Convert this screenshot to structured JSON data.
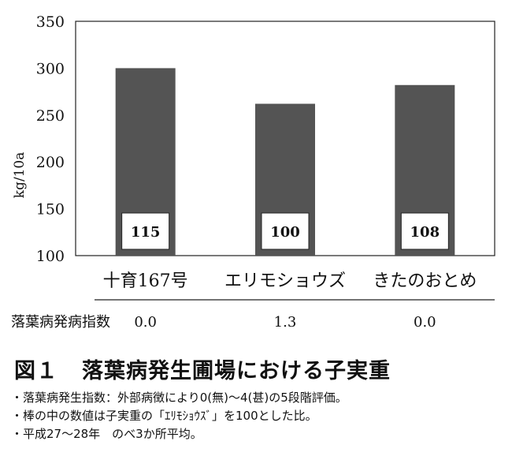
{
  "chart_data": {
    "type": "bar",
    "categories": [
      "十育167号",
      "エリモショウズ",
      "きたのおとめ"
    ],
    "values": [
      300,
      262,
      282
    ],
    "bar_labels": [
      "115",
      "100",
      "108"
    ],
    "ylabel": "kg/10a",
    "ylim": [
      100,
      350
    ],
    "yticks": [
      "350",
      "300",
      "250",
      "200",
      "150",
      "100"
    ],
    "grid": false,
    "bar_color": "#545454"
  },
  "index_row": {
    "label": "落葉病発病指数",
    "values": [
      "0.0",
      "1.3",
      "0.0"
    ]
  },
  "figure": {
    "number": "図１",
    "title": "落葉病発生圃場における子実重"
  },
  "notes": [
    "・落葉病発生指数：外部病徴により0(無)～4(甚)の5段階評価。",
    "・棒の中の数値は子実重の「ｴﾘﾓｼｮｳｽﾞ」を100とした比。",
    "・平成27～28年　のべ3か所平均。"
  ]
}
